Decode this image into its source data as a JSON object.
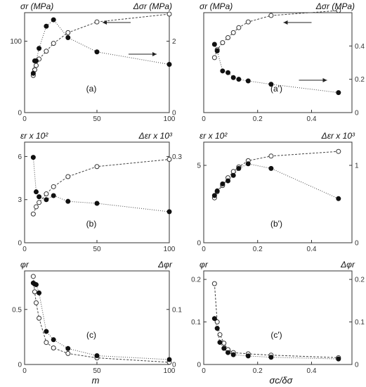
{
  "figure": {
    "bottom_xlabels": [
      "m",
      "σc/δσ"
    ]
  },
  "chart_data": [
    {
      "id": "a",
      "type": "scatter",
      "panel_label": "(a)",
      "x_ticks": [
        "0",
        "50",
        "100"
      ],
      "xlim": [
        0,
        100
      ],
      "left": {
        "label": "σr (MPa)",
        "ylim": [
          0,
          140
        ],
        "ticks": [
          "0",
          "100"
        ],
        "tick_values": [
          0,
          100
        ]
      },
      "right": {
        "label": "Δσr (MPa)",
        "ylim": [
          0,
          2.8
        ],
        "ticks": [
          "0",
          "2"
        ],
        "tick_values": [
          0,
          2
        ]
      },
      "series": [
        {
          "marker": "open",
          "axis": "left",
          "x": [
            6,
            7,
            8,
            10,
            15,
            20,
            30,
            50,
            100
          ],
          "y": [
            52,
            60,
            66,
            75,
            86,
            97,
            112,
            127,
            138
          ]
        },
        {
          "marker": "filled",
          "axis": "right",
          "x": [
            6,
            7,
            8,
            10,
            15,
            20,
            30,
            50,
            100
          ],
          "y": [
            1.1,
            1.45,
            1.45,
            1.8,
            2.42,
            2.6,
            2.1,
            1.7,
            1.35
          ]
        }
      ],
      "arrows": [
        {
          "points_to": "left"
        },
        {
          "points_to": "right"
        }
      ]
    },
    {
      "id": "a'",
      "type": "scatter",
      "panel_label": "(a')",
      "x_ticks": [
        "0",
        "0.2",
        "0.4"
      ],
      "xlim": [
        0,
        0.55
      ],
      "left": {
        "label": "σr (MPa)",
        "ylim": [
          0,
          140
        ],
        "ticks": [],
        "tick_values": []
      },
      "right": {
        "label": "Δσr (MPa)",
        "ylim": [
          0,
          0.6
        ],
        "ticks": [
          "0",
          "0.2",
          "0.4"
        ],
        "tick_values": [
          0,
          0.2,
          0.4
        ]
      },
      "series": [
        {
          "marker": "open",
          "axis": "left",
          "x": [
            0.04,
            0.05,
            0.07,
            0.09,
            0.11,
            0.13,
            0.165,
            0.25,
            0.5
          ],
          "y": [
            77,
            88,
            98,
            105,
            112,
            119,
            127,
            136,
            143
          ]
        },
        {
          "marker": "filled",
          "axis": "right",
          "x": [
            0.04,
            0.05,
            0.07,
            0.09,
            0.11,
            0.13,
            0.165,
            0.25,
            0.5
          ],
          "y": [
            0.41,
            0.37,
            0.25,
            0.24,
            0.21,
            0.2,
            0.19,
            0.17,
            0.12
          ]
        }
      ],
      "arrows": [
        {
          "points_to": "left"
        },
        {
          "points_to": "right"
        }
      ]
    },
    {
      "id": "b",
      "type": "scatter",
      "panel_label": "(b)",
      "x_ticks": [
        "0",
        "50",
        "100"
      ],
      "xlim": [
        0,
        100
      ],
      "left": {
        "label": "εr x 10²",
        "ylim": [
          0,
          7
        ],
        "ticks": [
          "0",
          "3",
          "6"
        ],
        "tick_values": [
          0,
          3,
          6
        ]
      },
      "right": {
        "label": "Δεr x 10³",
        "ylim": [
          0,
          0.35
        ],
        "ticks": [
          "0.3"
        ],
        "tick_values": [
          0.3
        ]
      },
      "series": [
        {
          "marker": "open",
          "axis": "left",
          "x": [
            6,
            8,
            10,
            15,
            20,
            30,
            50,
            100
          ],
          "y": [
            2.0,
            2.5,
            2.8,
            3.4,
            3.9,
            4.6,
            5.3,
            5.8
          ]
        },
        {
          "marker": "filled",
          "axis": "right",
          "x": [
            6,
            8,
            10,
            15,
            20,
            30,
            50,
            100
          ],
          "y": [
            0.297,
            0.177,
            0.16,
            0.15,
            0.164,
            0.144,
            0.137,
            0.108
          ]
        }
      ]
    },
    {
      "id": "b'",
      "type": "scatter",
      "panel_label": "(b')",
      "x_ticks": [
        "0",
        "0.2",
        "0.4"
      ],
      "xlim": [
        0,
        0.55
      ],
      "left": {
        "label": "εr x 10²",
        "ylim": [
          0,
          6.5
        ],
        "ticks": [
          "0",
          "5"
        ],
        "tick_values": [
          0,
          5
        ]
      },
      "right": {
        "label": "Δεr x 10³",
        "ylim": [
          0,
          1.3
        ],
        "ticks": [
          "0",
          "1"
        ],
        "tick_values": [
          0,
          1
        ]
      },
      "series": [
        {
          "marker": "open",
          "axis": "left",
          "x": [
            0.04,
            0.05,
            0.07,
            0.09,
            0.11,
            0.13,
            0.165,
            0.25,
            0.5
          ],
          "y": [
            2.9,
            3.3,
            3.7,
            4.2,
            4.6,
            4.9,
            5.3,
            5.6,
            5.9
          ]
        },
        {
          "marker": "filled",
          "axis": "right",
          "x": [
            0.04,
            0.05,
            0.07,
            0.09,
            0.11,
            0.13,
            0.165,
            0.25,
            0.5
          ],
          "y": [
            0.61,
            0.67,
            0.76,
            0.8,
            0.87,
            0.96,
            1.02,
            0.96,
            0.57
          ]
        }
      ]
    },
    {
      "id": "c",
      "type": "scatter",
      "panel_label": "(c)",
      "x_ticks": [
        "0",
        "50",
        "100"
      ],
      "xlim": [
        0,
        100
      ],
      "left": {
        "label": "φr",
        "ylim": [
          0,
          0.85
        ],
        "ticks": [
          "0",
          "0.5"
        ],
        "tick_values": [
          0,
          0.5
        ]
      },
      "right": {
        "label": "Δφr",
        "ylim": [
          0,
          0.17
        ],
        "ticks": [
          "0",
          "0.1"
        ],
        "tick_values": [
          0,
          0.1
        ]
      },
      "series": [
        {
          "marker": "open",
          "axis": "left",
          "x": [
            6,
            7,
            8,
            10,
            15,
            20,
            30,
            50,
            100
          ],
          "y": [
            0.8,
            0.66,
            0.56,
            0.42,
            0.2,
            0.15,
            0.1,
            0.06,
            0.02
          ]
        },
        {
          "marker": "filled",
          "axis": "right",
          "x": [
            6,
            7,
            8,
            10,
            15,
            20,
            30,
            50,
            100
          ],
          "y": [
            0.148,
            0.146,
            0.145,
            0.13,
            0.06,
            0.045,
            0.029,
            0.016,
            0.009
          ]
        }
      ]
    },
    {
      "id": "c'",
      "type": "scatter",
      "panel_label": "(c')",
      "x_ticks": [
        "0",
        "0.2",
        "0.4"
      ],
      "xlim": [
        0,
        0.55
      ],
      "left": {
        "label": "φr",
        "ylim": [
          0,
          0.22
        ],
        "ticks": [
          "0",
          "0.1",
          "0.2"
        ],
        "tick_values": [
          0,
          0.1,
          0.2
        ]
      },
      "right": {
        "label": "Δφr",
        "ylim": [
          0,
          0.22
        ],
        "ticks": [
          "0",
          "0.1",
          "0.2"
        ],
        "tick_values": [
          0,
          0.1,
          0.2
        ]
      },
      "series": [
        {
          "marker": "open",
          "axis": "left",
          "x": [
            0.04,
            0.05,
            0.06,
            0.075,
            0.09,
            0.11,
            0.165,
            0.25,
            0.5
          ],
          "y": [
            0.19,
            0.1,
            0.07,
            0.05,
            0.035,
            0.028,
            0.025,
            0.022,
            0.016
          ]
        },
        {
          "marker": "filled",
          "axis": "right",
          "x": [
            0.04,
            0.05,
            0.06,
            0.075,
            0.09,
            0.11,
            0.165,
            0.25,
            0.5
          ],
          "y": [
            0.108,
            0.085,
            0.052,
            0.038,
            0.028,
            0.023,
            0.02,
            0.017,
            0.013
          ]
        }
      ]
    }
  ]
}
